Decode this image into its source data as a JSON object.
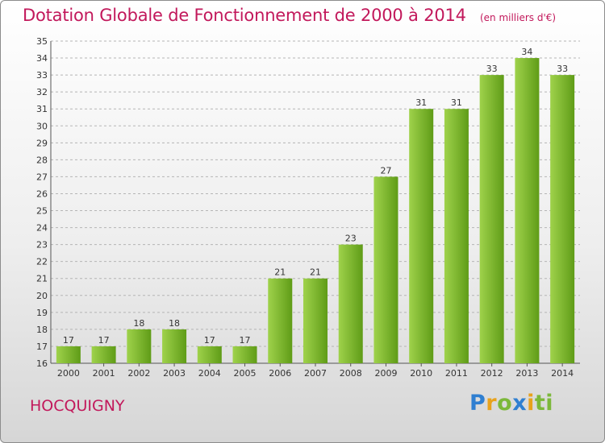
{
  "header": {
    "title": "Dotation Globale de Fonctionnement de 2000 à 2014",
    "subtitle": "(en milliers d'€)"
  },
  "footer": {
    "commune": "HOCQUIGNY",
    "logo_letters": [
      "P",
      "r",
      "o",
      "x",
      "i",
      "ti"
    ]
  },
  "colors": {
    "bar_light": "#9fd24b",
    "bar_dark": "#5f9c17",
    "title": "#c2185b",
    "grid": "#b5b5b5"
  },
  "chart_data": {
    "type": "bar",
    "title": "Dotation Globale de Fonctionnement de 2000 à 2014",
    "subtitle": "(en milliers d'€)",
    "xlabel": "",
    "ylabel": "",
    "categories": [
      "2000",
      "2001",
      "2002",
      "2003",
      "2004",
      "2005",
      "2006",
      "2007",
      "2008",
      "2009",
      "2010",
      "2011",
      "2012",
      "2013",
      "2014"
    ],
    "values": [
      17,
      17,
      18,
      18,
      17,
      17,
      21,
      21,
      23,
      27,
      31,
      31,
      33,
      34,
      33
    ],
    "ylim": [
      16,
      35
    ],
    "yticks": [
      16,
      17,
      18,
      19,
      20,
      21,
      22,
      23,
      24,
      25,
      26,
      27,
      28,
      29,
      30,
      31,
      32,
      33,
      34,
      35
    ],
    "grid": "horizontal dashed",
    "legend": "none"
  }
}
